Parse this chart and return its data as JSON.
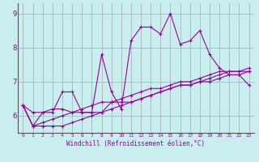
{
  "xlabel": "Windchill (Refroidissement éolien,°C)",
  "bg_color": "#c8eef0",
  "grid_color": "#aaaaaa",
  "line_color": "#990099",
  "x_vals": [
    0,
    1,
    2,
    3,
    4,
    5,
    6,
    7,
    8,
    9,
    10,
    11,
    12,
    13,
    14,
    15,
    16,
    17,
    18,
    19,
    20,
    21,
    22,
    23
  ],
  "series1": [
    6.3,
    6.1,
    6.1,
    6.1,
    6.7,
    6.7,
    6.1,
    6.1,
    7.8,
    6.7,
    6.2,
    8.2,
    8.6,
    8.6,
    8.4,
    9.0,
    8.1,
    8.2,
    8.5,
    7.8,
    7.4,
    7.2,
    7.2,
    6.9
  ],
  "series2": [
    6.3,
    5.7,
    6.1,
    6.2,
    6.2,
    6.1,
    6.1,
    6.1,
    6.1,
    6.4,
    6.4,
    6.4,
    6.5,
    6.6,
    6.7,
    6.8,
    6.9,
    6.9,
    7.0,
    7.1,
    7.2,
    7.3,
    7.3,
    7.4
  ],
  "series3": [
    6.3,
    5.7,
    5.8,
    5.9,
    6.0,
    6.1,
    6.2,
    6.3,
    6.4,
    6.4,
    6.5,
    6.6,
    6.7,
    6.8,
    6.8,
    6.9,
    7.0,
    7.0,
    7.1,
    7.2,
    7.3,
    7.3,
    7.3,
    7.3
  ],
  "series4": [
    6.3,
    5.7,
    5.7,
    5.7,
    5.7,
    5.8,
    5.9,
    6.0,
    6.1,
    6.2,
    6.3,
    6.4,
    6.5,
    6.6,
    6.7,
    6.8,
    6.9,
    6.9,
    7.0,
    7.0,
    7.1,
    7.2,
    7.2,
    7.3
  ],
  "ylim": [
    5.5,
    9.3
  ],
  "yticks": [
    6,
    7,
    8,
    9
  ],
  "xticks": [
    0,
    1,
    2,
    3,
    4,
    5,
    6,
    7,
    8,
    9,
    10,
    11,
    12,
    13,
    14,
    15,
    16,
    17,
    18,
    19,
    20,
    21,
    22,
    23
  ],
  "spine_color": "#555555"
}
